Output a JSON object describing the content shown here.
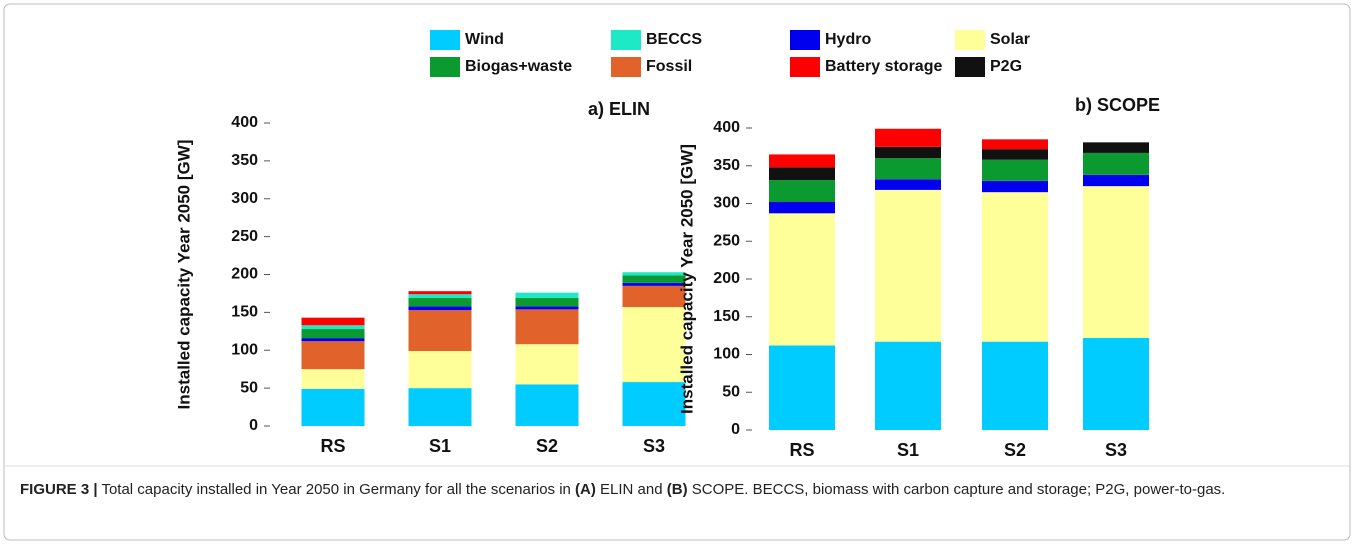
{
  "legend": [
    {
      "name": "Wind",
      "color": "#00ccff"
    },
    {
      "name": "Solar",
      "color": "#ffff99"
    },
    {
      "name": "Fossil",
      "color": "#e2622b"
    },
    {
      "name": "Hydro",
      "color": "#0000ee"
    },
    {
      "name": "Biogas+waste",
      "color": "#0a9a30"
    },
    {
      "name": "BECCS",
      "color": "#1ee9c6"
    },
    {
      "name": "P2G",
      "color": "#111111"
    },
    {
      "name": "Battery storage",
      "color": "#ff0000"
    }
  ],
  "chart_data": [
    {
      "type": "stacked_bar",
      "title": "a) ELIN",
      "y_label": "Installed capacity Year 2050 [GW]",
      "categories": [
        "RS",
        "S1",
        "S2",
        "S3"
      ],
      "series": [
        {
          "values": [
            49,
            50,
            55,
            58
          ]
        },
        {
          "values": [
            26,
            49,
            53,
            99
          ]
        },
        {
          "values": [
            37,
            54,
            46,
            28
          ]
        },
        {
          "values": [
            4,
            5,
            4,
            4
          ]
        },
        {
          "values": [
            12,
            11,
            11,
            10
          ]
        },
        {
          "values": [
            5,
            5,
            7,
            4
          ]
        },
        {
          "values": [
            0,
            0,
            0,
            0
          ]
        },
        {
          "values": [
            10,
            4,
            0,
            0
          ]
        }
      ],
      "ylim": [
        0,
        400
      ],
      "yticks": [
        0,
        50,
        100,
        150,
        200,
        250,
        300,
        350,
        400
      ]
    },
    {
      "type": "stacked_bar",
      "title": "b) SCOPE",
      "y_label": "Installed capacity Year 2050 [GW]",
      "categories": [
        "RS",
        "S1",
        "S2",
        "S3"
      ],
      "series": [
        {
          "values": [
            112,
            117,
            117,
            122
          ]
        },
        {
          "values": [
            175,
            201,
            198,
            201
          ]
        },
        {
          "values": [
            0,
            0,
            0,
            0
          ]
        },
        {
          "values": [
            15,
            14,
            15,
            15
          ]
        },
        {
          "values": [
            29,
            28,
            28,
            29
          ]
        },
        {
          "values": [
            0,
            0,
            0,
            0
          ]
        },
        {
          "values": [
            17,
            15,
            14,
            14
          ]
        },
        {
          "values": [
            17,
            24,
            13,
            0
          ]
        }
      ],
      "ylim": [
        0,
        400
      ],
      "yticks": [
        0,
        50,
        100,
        150,
        200,
        250,
        300,
        350,
        400
      ]
    }
  ],
  "caption": [
    {
      "text": "FIGURE 3 |",
      "bold": true
    },
    {
      "text": " Total capacity installed in Year 2050 in Germany for all the scenarios in ",
      "bold": false
    },
    {
      "text": "(A)",
      "bold": true
    },
    {
      "text": " ELIN and ",
      "bold": false
    },
    {
      "text": "(B)",
      "bold": true
    },
    {
      "text": " SCOPE. BECCS, biomass with carbon capture and storage; P2G, power-to-gas.",
      "bold": false
    }
  ]
}
